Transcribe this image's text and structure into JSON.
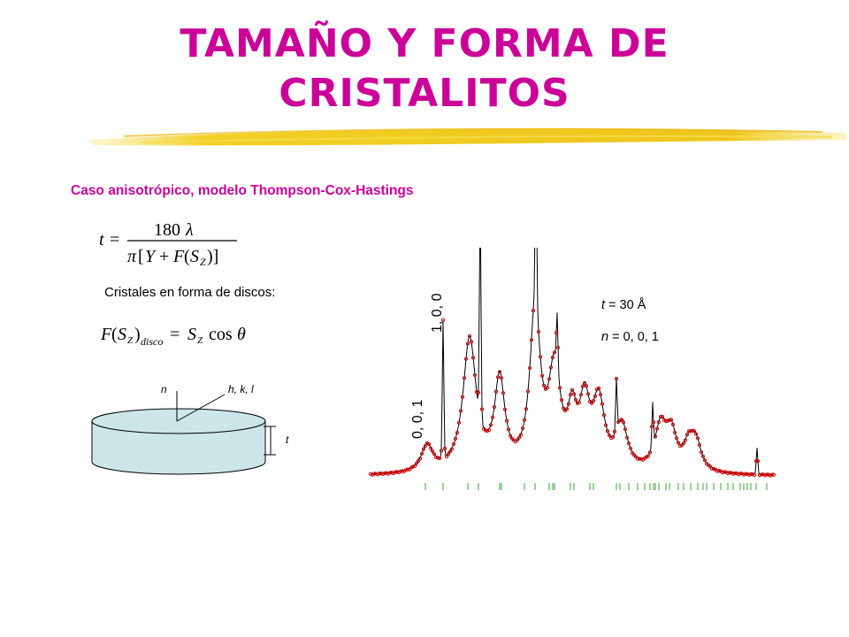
{
  "title_line1": "TAMAÑO Y FORMA DE",
  "title_line2": "CRISTALITOS",
  "subtitle": "Caso anisotrópico, modelo Thompson-Cox-Hastings",
  "disc_text": "Cristales en forma de discos:",
  "diagram": {
    "n_label": "n",
    "hkl_label": "h, k, l",
    "t_label": "t",
    "disc_color": "#cce6ea"
  },
  "pattern": {
    "peak_100_label": "1, 0, 0",
    "peak_001_label": "0, 0, 1",
    "t_symbol": "t",
    "t_value": " = 30 Å",
    "n_symbol": "n",
    "n_value": " = 0, 0, 1",
    "calc_color": "#000000",
    "obs_color": "#cc0000",
    "tick_color": "#33aa33"
  },
  "colors": {
    "title": "#cc0099",
    "brush": "#f2d024"
  }
}
